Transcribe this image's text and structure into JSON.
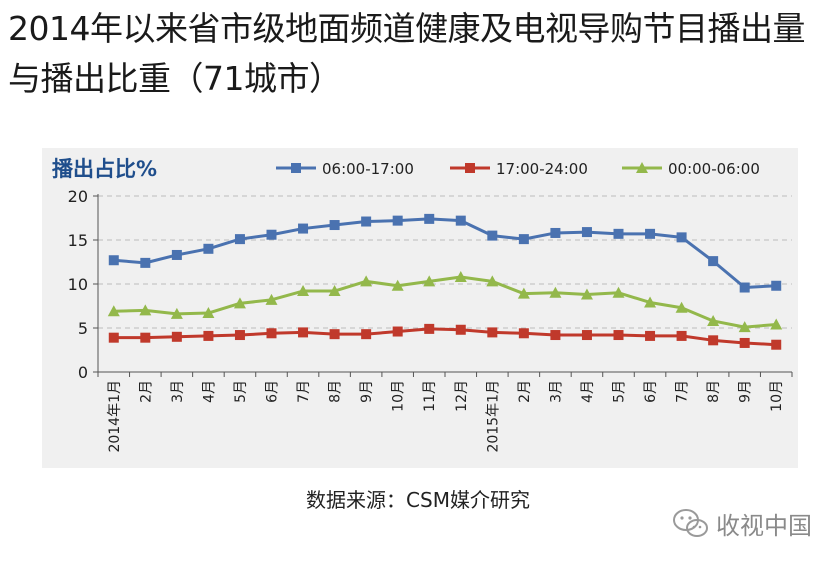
{
  "page": {
    "title_line1": "2014年以来省市级地面频道健康及电视导购节目播出量",
    "title_line2": "与播出比重（71城市）",
    "source": "数据来源：CSM媒介研究",
    "watermark": "收视中国"
  },
  "colors": {
    "series1": "#4a72b0",
    "series2": "#c0392b",
    "series3": "#93b84b",
    "ylabel": "#1f4e8c",
    "panel": "#f0f0f0",
    "grid": "#bbbbbb"
  },
  "icons": {
    "watermark": "wechat-icon"
  },
  "chart_data": {
    "type": "line",
    "title": "",
    "ylabel": "播出占比%",
    "xlabel": "",
    "ylim": [
      0,
      20
    ],
    "yticks": [
      0,
      5,
      10,
      15,
      20
    ],
    "legend_position": "top",
    "grid": true,
    "categories": [
      "2014年1月",
      "2月",
      "3月",
      "4月",
      "5月",
      "6月",
      "7月",
      "8月",
      "9月",
      "10月",
      "11月",
      "12月",
      "2015年1月",
      "2月",
      "3月",
      "4月",
      "5月",
      "6月",
      "7月",
      "8月",
      "9月",
      "10月"
    ],
    "series": [
      {
        "name": "06:00-17:00",
        "marker": "square",
        "values": [
          12.7,
          12.4,
          13.3,
          14.0,
          15.1,
          15.6,
          16.3,
          16.7,
          17.1,
          17.2,
          17.4,
          17.2,
          15.5,
          15.1,
          15.8,
          15.9,
          15.7,
          15.7,
          15.3,
          12.6,
          9.6,
          9.8
        ]
      },
      {
        "name": "17:00-24:00",
        "marker": "square",
        "values": [
          3.9,
          3.9,
          4.0,
          4.1,
          4.2,
          4.4,
          4.5,
          4.3,
          4.3,
          4.6,
          4.9,
          4.8,
          4.5,
          4.4,
          4.2,
          4.2,
          4.2,
          4.1,
          4.1,
          3.6,
          3.3,
          3.1
        ]
      },
      {
        "name": "00:00-06:00",
        "marker": "triangle",
        "values": [
          6.9,
          7.0,
          6.6,
          6.7,
          7.8,
          8.2,
          9.2,
          9.2,
          10.3,
          9.8,
          10.3,
          10.8,
          10.3,
          8.9,
          9.0,
          8.8,
          9.0,
          7.9,
          7.3,
          5.8,
          5.1,
          5.4
        ]
      }
    ]
  }
}
